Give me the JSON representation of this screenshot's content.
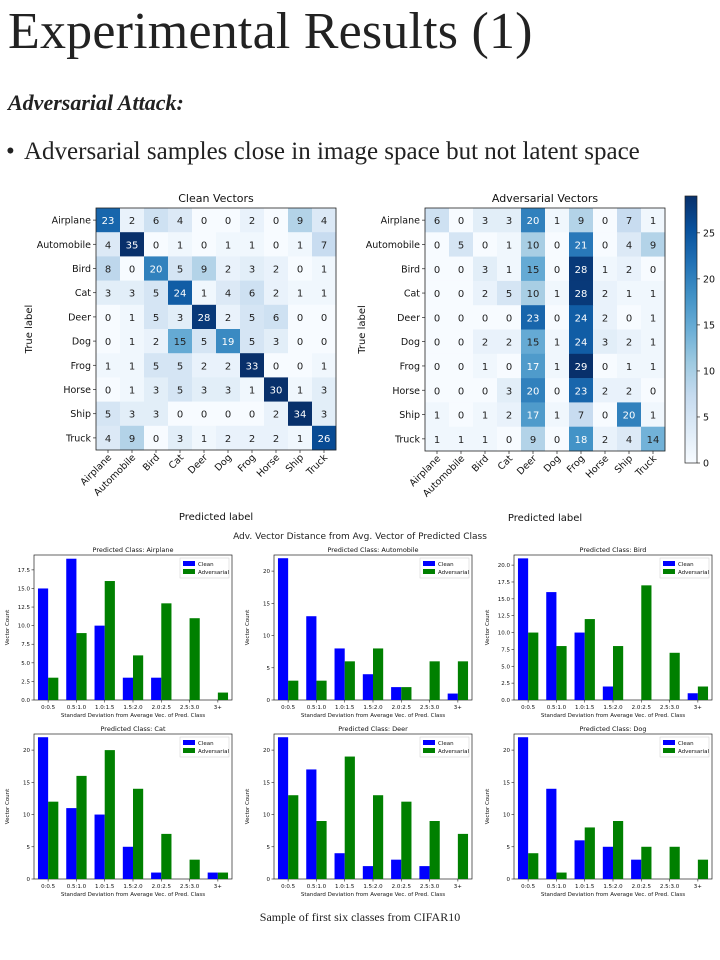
{
  "slide": {
    "title": "Experimental Results (1)",
    "subtitle": "Adversarial Attack:",
    "bullet": "Adversarial samples close in image space but not latent space",
    "caption": "Sample of first six classes from CIFAR10"
  },
  "chart_data": [
    {
      "type": "heatmap",
      "title": "Clean Vectors",
      "xlabel": "Predicted label",
      "ylabel": "True label",
      "labels": [
        "Airplane",
        "Automobile",
        "Bird",
        "Cat",
        "Deer",
        "Dog",
        "Frog",
        "Horse",
        "Ship",
        "Truck"
      ],
      "colorscale": "Blues",
      "vmax": 29,
      "matrix": [
        [
          23,
          2,
          6,
          4,
          0,
          0,
          2,
          0,
          9,
          4
        ],
        [
          4,
          35,
          0,
          1,
          0,
          1,
          1,
          0,
          1,
          7
        ],
        [
          8,
          0,
          20,
          5,
          9,
          2,
          3,
          2,
          0,
          1
        ],
        [
          3,
          3,
          5,
          24,
          1,
          4,
          6,
          2,
          1,
          1
        ],
        [
          0,
          1,
          5,
          3,
          28,
          2,
          5,
          6,
          0,
          0
        ],
        [
          0,
          1,
          2,
          15,
          5,
          19,
          5,
          3,
          0,
          0
        ],
        [
          1,
          1,
          5,
          5,
          2,
          2,
          33,
          0,
          0,
          1
        ],
        [
          0,
          1,
          3,
          5,
          3,
          3,
          1,
          30,
          1,
          3
        ],
        [
          5,
          3,
          3,
          0,
          0,
          0,
          0,
          2,
          34,
          3
        ],
        [
          4,
          9,
          0,
          3,
          1,
          2,
          2,
          2,
          1,
          26
        ]
      ]
    },
    {
      "type": "heatmap",
      "title": "Adversarial Vectors",
      "xlabel": "Predicted label",
      "ylabel": "True label",
      "labels": [
        "Airplane",
        "Automobile",
        "Bird",
        "Cat",
        "Deer",
        "Dog",
        "Frog",
        "Horse",
        "Ship",
        "Truck"
      ],
      "colorscale": "Blues",
      "vmax": 29,
      "colorbar_ticks": [
        0,
        5,
        10,
        15,
        20,
        25
      ],
      "matrix": [
        [
          6,
          0,
          3,
          3,
          20,
          1,
          9,
          0,
          7,
          1
        ],
        [
          0,
          5,
          0,
          1,
          10,
          0,
          21,
          0,
          4,
          9
        ],
        [
          0,
          0,
          3,
          1,
          15,
          0,
          28,
          1,
          2,
          0
        ],
        [
          0,
          0,
          2,
          5,
          10,
          1,
          28,
          2,
          1,
          1
        ],
        [
          0,
          0,
          0,
          0,
          23,
          0,
          24,
          2,
          0,
          1
        ],
        [
          0,
          0,
          2,
          2,
          15,
          1,
          24,
          3,
          2,
          1
        ],
        [
          0,
          0,
          1,
          0,
          17,
          1,
          29,
          0,
          1,
          1
        ],
        [
          0,
          0,
          0,
          3,
          20,
          0,
          23,
          2,
          2,
          0
        ],
        [
          1,
          0,
          1,
          2,
          17,
          1,
          7,
          0,
          20,
          1
        ],
        [
          1,
          1,
          1,
          0,
          9,
          0,
          18,
          2,
          4,
          14
        ]
      ]
    },
    {
      "type": "bar",
      "figure_title": "Adv. Vector Distance from Avg. Vector of Predicted Class",
      "title": "Predicted Class: Airplane",
      "xlabel": "Standard Deviation from Average Vec. of Pred. Class",
      "ylabel": "Vector Count",
      "categories": [
        "0:0.5",
        "0.5:1.0",
        "1.0:1.5",
        "1.5:2.0",
        "2.0:2.5",
        "2.5:3.0",
        "3+"
      ],
      "ylim": [
        0,
        19.5
      ],
      "yticks": [
        0.0,
        2.5,
        5.0,
        7.5,
        10.0,
        12.5,
        15.0,
        17.5
      ],
      "ytick_labels": [
        "0.0",
        "2.5",
        "5.0",
        "7.5",
        "10.0",
        "12.5",
        "15.0",
        "17.5"
      ],
      "series": [
        {
          "name": "Clean",
          "color": "#0000ff",
          "values": [
            15,
            19,
            10,
            3,
            3,
            0,
            0
          ]
        },
        {
          "name": "Adversarial",
          "color": "#008000",
          "values": [
            3,
            9,
            16,
            6,
            13,
            11,
            1
          ]
        }
      ]
    },
    {
      "type": "bar",
      "title": "Predicted Class: Automobile",
      "xlabel": "Standard Deviation from Average Vec. of Pred. Class",
      "ylabel": "Vector Count",
      "categories": [
        "0:0.5",
        "0.5:1.0",
        "1.0:1.5",
        "1.5:2.0",
        "2.0:2.5",
        "2.5:3.0",
        "3+"
      ],
      "ylim": [
        0,
        22.5
      ],
      "yticks": [
        0,
        5,
        10,
        15,
        20
      ],
      "ytick_labels": [
        "0",
        "5",
        "10",
        "15",
        "20"
      ],
      "series": [
        {
          "name": "Clean",
          "color": "#0000ff",
          "values": [
            22,
            13,
            8,
            4,
            2,
            0,
            1
          ]
        },
        {
          "name": "Adversarial",
          "color": "#008000",
          "values": [
            3,
            3,
            6,
            8,
            2,
            6,
            6
          ]
        }
      ]
    },
    {
      "type": "bar",
      "title": "Predicted Class: Bird",
      "xlabel": "Standard Deviation from Average Vec. of Pred. Class",
      "ylabel": "Vector Count",
      "categories": [
        "0:0.5",
        "0.5:1.0",
        "1.0:1.5",
        "1.5:2.0",
        "2.0:2.5",
        "2.5:3.0",
        "3+"
      ],
      "ylim": [
        0,
        21.5
      ],
      "yticks": [
        0.0,
        2.5,
        5.0,
        7.5,
        10.0,
        12.5,
        15.0,
        17.5,
        20.0
      ],
      "ytick_labels": [
        "0.0",
        "2.5",
        "5.0",
        "7.5",
        "10.0",
        "12.5",
        "15.0",
        "17.5",
        "20.0"
      ],
      "series": [
        {
          "name": "Clean",
          "color": "#0000ff",
          "values": [
            21,
            16,
            10,
            2,
            0,
            0,
            1
          ]
        },
        {
          "name": "Adversarial",
          "color": "#008000",
          "values": [
            10,
            8,
            12,
            8,
            17,
            7,
            2
          ]
        }
      ]
    },
    {
      "type": "bar",
      "title": "Predicted Class: Cat",
      "xlabel": "Standard Deviation from Average Vec. of Pred. Class",
      "ylabel": "Vector Count",
      "categories": [
        "0:0.5",
        "0.5:1.0",
        "1.0:1.5",
        "1.5:2.0",
        "2.0:2.5",
        "2.5:3.0",
        "3+"
      ],
      "ylim": [
        0,
        22.5
      ],
      "yticks": [
        0,
        5,
        10,
        15,
        20
      ],
      "ytick_labels": [
        "0",
        "5",
        "10",
        "15",
        "20"
      ],
      "series": [
        {
          "name": "Clean",
          "color": "#0000ff",
          "values": [
            22,
            11,
            10,
            5,
            1,
            0,
            1
          ]
        },
        {
          "name": "Adversarial",
          "color": "#008000",
          "values": [
            12,
            16,
            20,
            14,
            7,
            3,
            1
          ]
        }
      ]
    },
    {
      "type": "bar",
      "title": "Predicted Class: Deer",
      "xlabel": "Standard Deviation from Average Vec. of Pred. Class",
      "ylabel": "Vector Count",
      "categories": [
        "0:0.5",
        "0.5:1.0",
        "1.0:1.5",
        "1.5:2.0",
        "2.0:2.5",
        "2.5:3.0",
        "3+"
      ],
      "ylim": [
        0,
        22.5
      ],
      "yticks": [
        0,
        5,
        10,
        15,
        20
      ],
      "ytick_labels": [
        "0",
        "5",
        "10",
        "15",
        "20"
      ],
      "series": [
        {
          "name": "Clean",
          "color": "#0000ff",
          "values": [
            22,
            17,
            4,
            2,
            3,
            2,
            0
          ]
        },
        {
          "name": "Adversarial",
          "color": "#008000",
          "values": [
            13,
            9,
            19,
            13,
            12,
            9,
            7
          ]
        }
      ]
    },
    {
      "type": "bar",
      "title": "Predicted Class: Dog",
      "xlabel": "Standard Deviation from Average Vec. of Pred. Class",
      "ylabel": "Vector Count",
      "categories": [
        "0:0.5",
        "0.5:1.0",
        "1.0:1.5",
        "1.5:2.0",
        "2.0:2.5",
        "2.5:3.0",
        "3+"
      ],
      "ylim": [
        0,
        22.5
      ],
      "yticks": [
        0,
        5,
        10,
        15,
        20
      ],
      "ytick_labels": [
        "0",
        "5",
        "10",
        "15",
        "20"
      ],
      "series": [
        {
          "name": "Clean",
          "color": "#0000ff",
          "values": [
            22,
            14,
            6,
            5,
            3,
            0,
            0
          ]
        },
        {
          "name": "Adversarial",
          "color": "#008000",
          "values": [
            4,
            1,
            8,
            9,
            5,
            5,
            3
          ]
        }
      ]
    }
  ]
}
